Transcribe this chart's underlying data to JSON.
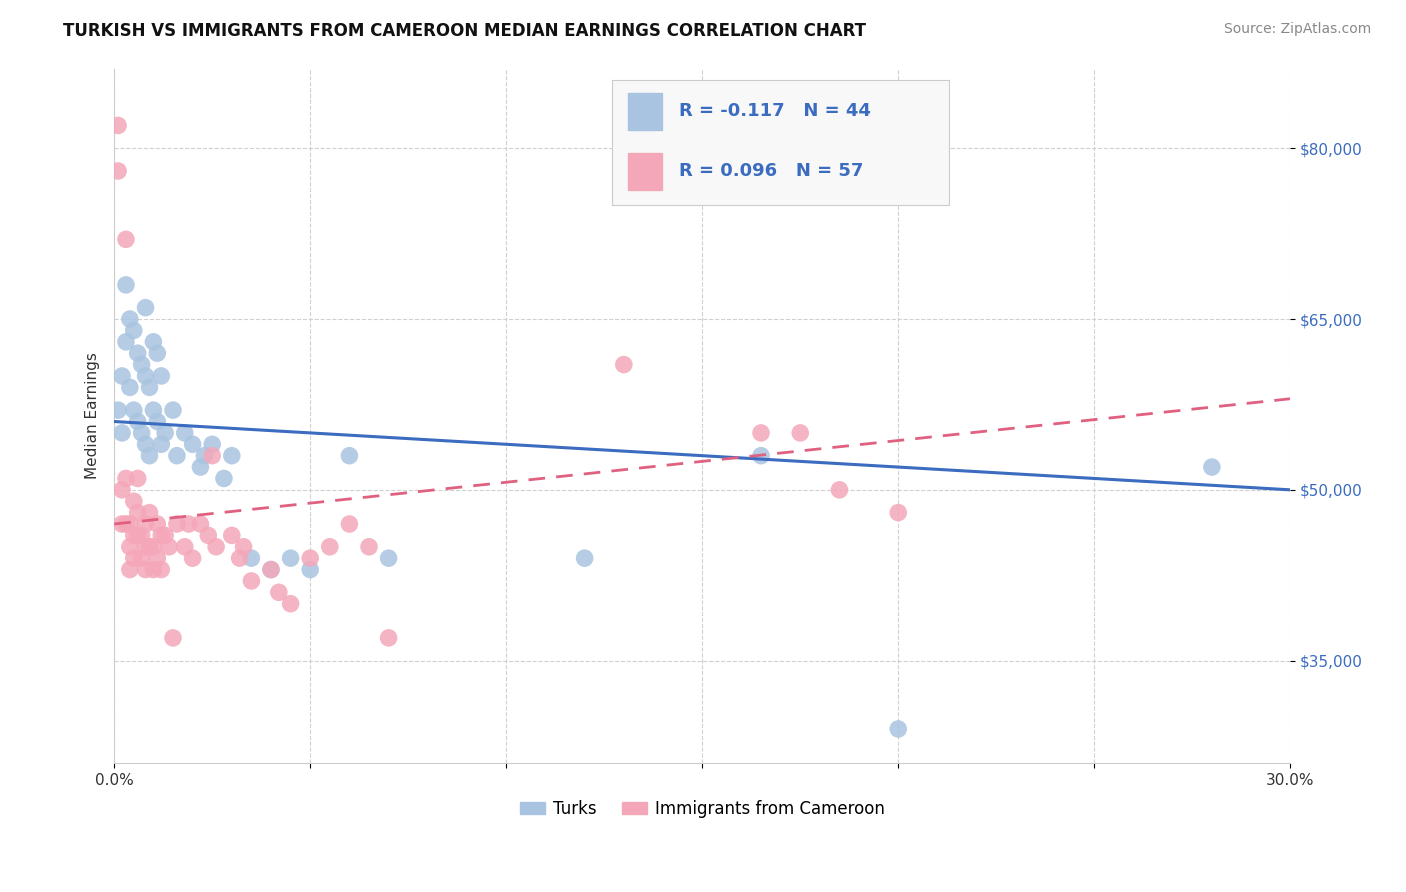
{
  "title": "TURKISH VS IMMIGRANTS FROM CAMEROON MEDIAN EARNINGS CORRELATION CHART",
  "source": "Source: ZipAtlas.com",
  "ylabel": "Median Earnings",
  "legend_labels": [
    "Turks",
    "Immigrants from Cameroon"
  ],
  "r_turks": -0.117,
  "n_turks": 44,
  "r_cameroon": 0.096,
  "n_cameroon": 57,
  "xlim": [
    0.0,
    0.3
  ],
  "ylim": [
    26000,
    87000
  ],
  "yticks": [
    35000,
    50000,
    65000,
    80000
  ],
  "ytick_labels": [
    "$35,000",
    "$50,000",
    "$65,000",
    "$80,000"
  ],
  "xticks": [
    0.0,
    0.05,
    0.1,
    0.15,
    0.2,
    0.25,
    0.3
  ],
  "xtick_labels": [
    "0.0%",
    "",
    "",
    "",
    "",
    "",
    "30.0%"
  ],
  "turks_x": [
    0.001,
    0.002,
    0.002,
    0.003,
    0.003,
    0.004,
    0.004,
    0.005,
    0.005,
    0.006,
    0.006,
    0.007,
    0.007,
    0.008,
    0.008,
    0.008,
    0.009,
    0.009,
    0.01,
    0.01,
    0.011,
    0.011,
    0.012,
    0.012,
    0.013,
    0.015,
    0.016,
    0.018,
    0.02,
    0.022,
    0.023,
    0.025,
    0.028,
    0.03,
    0.035,
    0.04,
    0.045,
    0.05,
    0.06,
    0.07,
    0.12,
    0.165,
    0.2,
    0.28
  ],
  "turks_y": [
    57000,
    60000,
    55000,
    68000,
    63000,
    65000,
    59000,
    64000,
    57000,
    62000,
    56000,
    61000,
    55000,
    66000,
    60000,
    54000,
    59000,
    53000,
    63000,
    57000,
    62000,
    56000,
    60000,
    54000,
    55000,
    57000,
    53000,
    55000,
    54000,
    52000,
    53000,
    54000,
    51000,
    53000,
    44000,
    43000,
    44000,
    43000,
    53000,
    44000,
    44000,
    53000,
    29000,
    52000
  ],
  "cameroon_x": [
    0.001,
    0.001,
    0.002,
    0.002,
    0.003,
    0.003,
    0.003,
    0.004,
    0.004,
    0.004,
    0.005,
    0.005,
    0.005,
    0.006,
    0.006,
    0.006,
    0.007,
    0.007,
    0.008,
    0.008,
    0.008,
    0.009,
    0.009,
    0.01,
    0.01,
    0.011,
    0.011,
    0.012,
    0.012,
    0.013,
    0.014,
    0.015,
    0.016,
    0.018,
    0.019,
    0.02,
    0.022,
    0.024,
    0.025,
    0.026,
    0.03,
    0.032,
    0.033,
    0.035,
    0.04,
    0.042,
    0.045,
    0.05,
    0.055,
    0.06,
    0.065,
    0.07,
    0.13,
    0.165,
    0.175,
    0.185,
    0.2
  ],
  "cameroon_y": [
    82000,
    78000,
    50000,
    47000,
    72000,
    51000,
    47000,
    47000,
    45000,
    43000,
    49000,
    46000,
    44000,
    51000,
    48000,
    46000,
    46000,
    44000,
    47000,
    45000,
    43000,
    48000,
    45000,
    45000,
    43000,
    47000,
    44000,
    46000,
    43000,
    46000,
    45000,
    37000,
    47000,
    45000,
    47000,
    44000,
    47000,
    46000,
    53000,
    45000,
    46000,
    44000,
    45000,
    42000,
    43000,
    41000,
    40000,
    44000,
    45000,
    47000,
    45000,
    37000,
    61000,
    55000,
    55000,
    50000,
    48000
  ],
  "turks_color": "#a8c4e0",
  "cameroon_color": "#f4a7b9",
  "turks_line_color": "#3b6cbf",
  "cameroon_line_color": "#e06080",
  "background_color": "#ffffff",
  "grid_color": "#d0d0d0",
  "title_fontsize": 12,
  "axis_label_fontsize": 11,
  "tick_fontsize": 11,
  "legend_fontsize": 13,
  "source_fontsize": 10,
  "turks_line_y0": 56000,
  "turks_line_y1": 50000,
  "cameroon_line_y0": 47000,
  "cameroon_line_y1": 58000
}
